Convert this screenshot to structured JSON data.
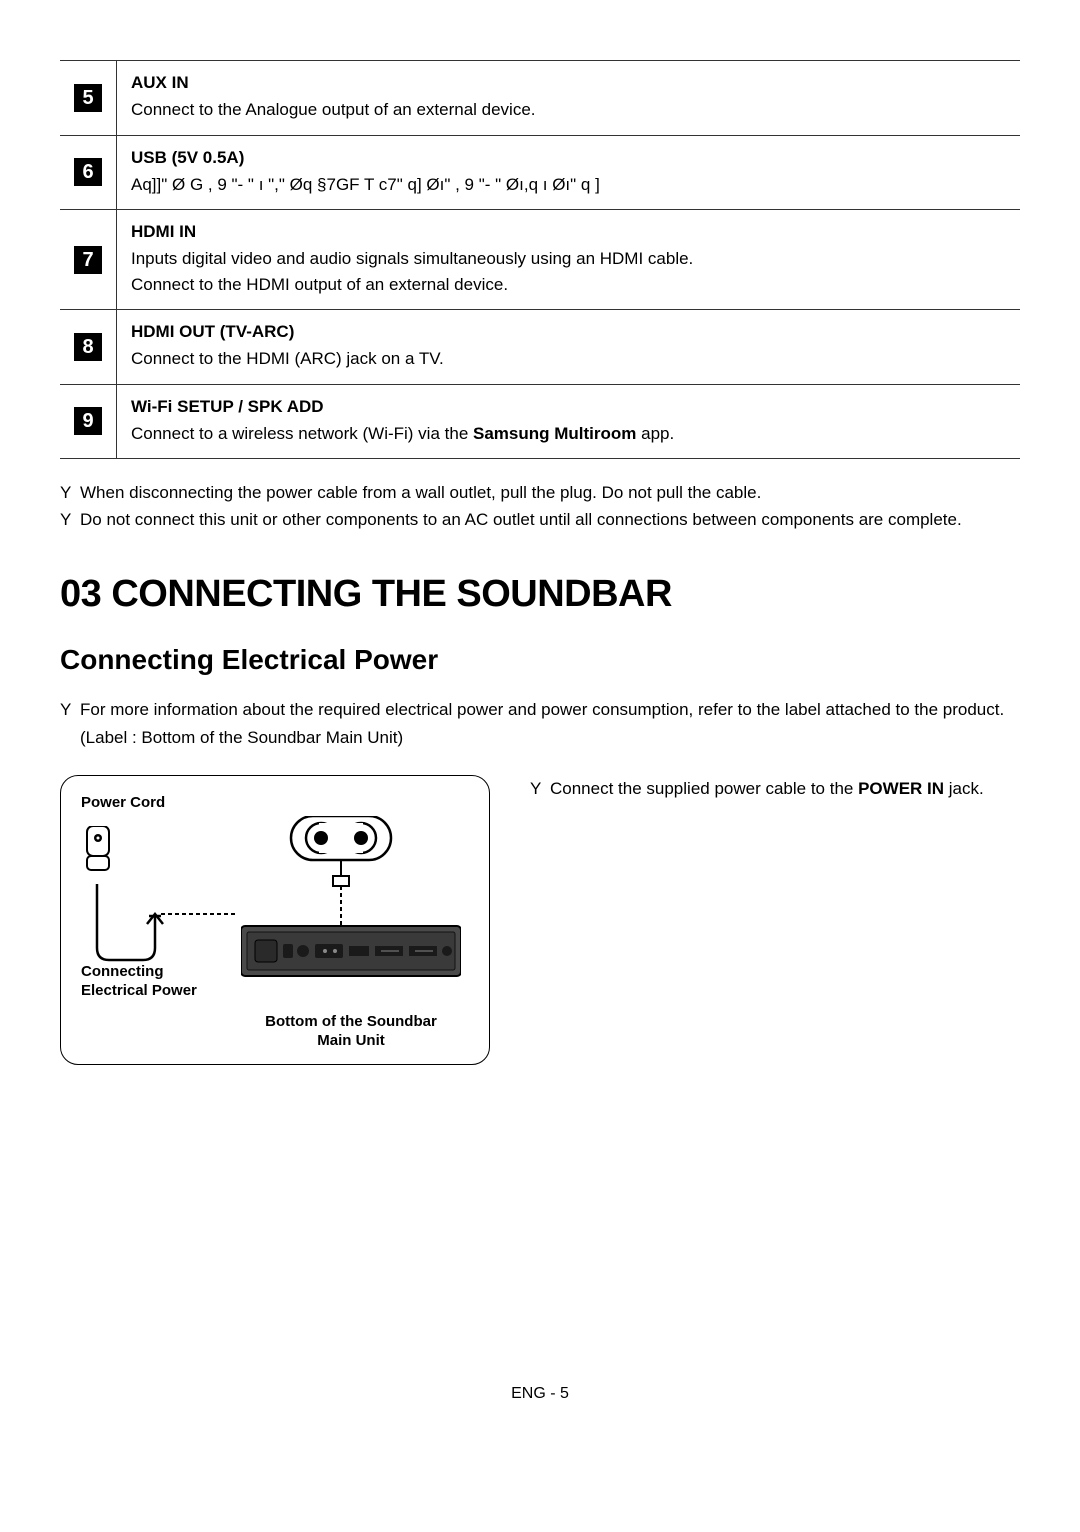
{
  "ports": [
    {
      "num": "5",
      "title": "AUX IN",
      "lines": [
        "Connect to the Analogue output of an external device."
      ]
    },
    {
      "num": "6",
      "title": "USB (5V 0.5A)",
      "lines": [
        "Aq]]\"  Ø G , 9  \"-  \"  ı \",\"  Øq  §7GF  T     c7\"   q]  Øı\"  , 9  \"-  \"  Øı,q  ı  Øı\"   q ]"
      ]
    },
    {
      "num": "7",
      "title": "HDMI IN",
      "lines": [
        "Inputs digital video and audio signals simultaneously using an HDMI cable.",
        "Connect to the HDMI output of an external device."
      ]
    },
    {
      "num": "8",
      "title": "HDMI OUT (TV-ARC)",
      "lines": [
        "Connect to the HDMI (ARC) jack on a TV."
      ]
    },
    {
      "num": "9",
      "title": "Wi-Fi SETUP / SPK ADD",
      "lines": [
        "Connect to a wireless network (Wi-Fi) via the <b>Samsung Multiroom</b> app."
      ]
    }
  ],
  "table_notes": [
    "When disconnecting the power cable from a wall outlet, pull the plug. Do not pull the cable.",
    "Do not connect this unit or other components to an AC outlet until all connections between components are complete."
  ],
  "section": {
    "heading": "03  CONNECTING THE SOUNDBAR",
    "subheading": "Connecting Electrical Power",
    "info_bullet": "For more information about the required electrical power and power consumption, refer to the label attached to the product. (Label : Bottom of the Soundbar Main Unit)",
    "diagram": {
      "power_cord_label": "Power Cord",
      "connecting_label_line1": "Connecting",
      "connecting_label_line2": "Electrical Power",
      "bottom_label_line1": "Bottom of the Soundbar",
      "bottom_label_line2": "Main Unit"
    },
    "right_note_prefix": "Connect the supplied power cable to the ",
    "right_note_bold": "POWER IN",
    "right_note_suffix": " jack."
  },
  "footer": "ENG - 5",
  "colors": {
    "text": "#000000",
    "bg": "#ffffff",
    "border": "#333333",
    "device_fill": "#4a4a4a",
    "device_stroke": "#000000"
  }
}
